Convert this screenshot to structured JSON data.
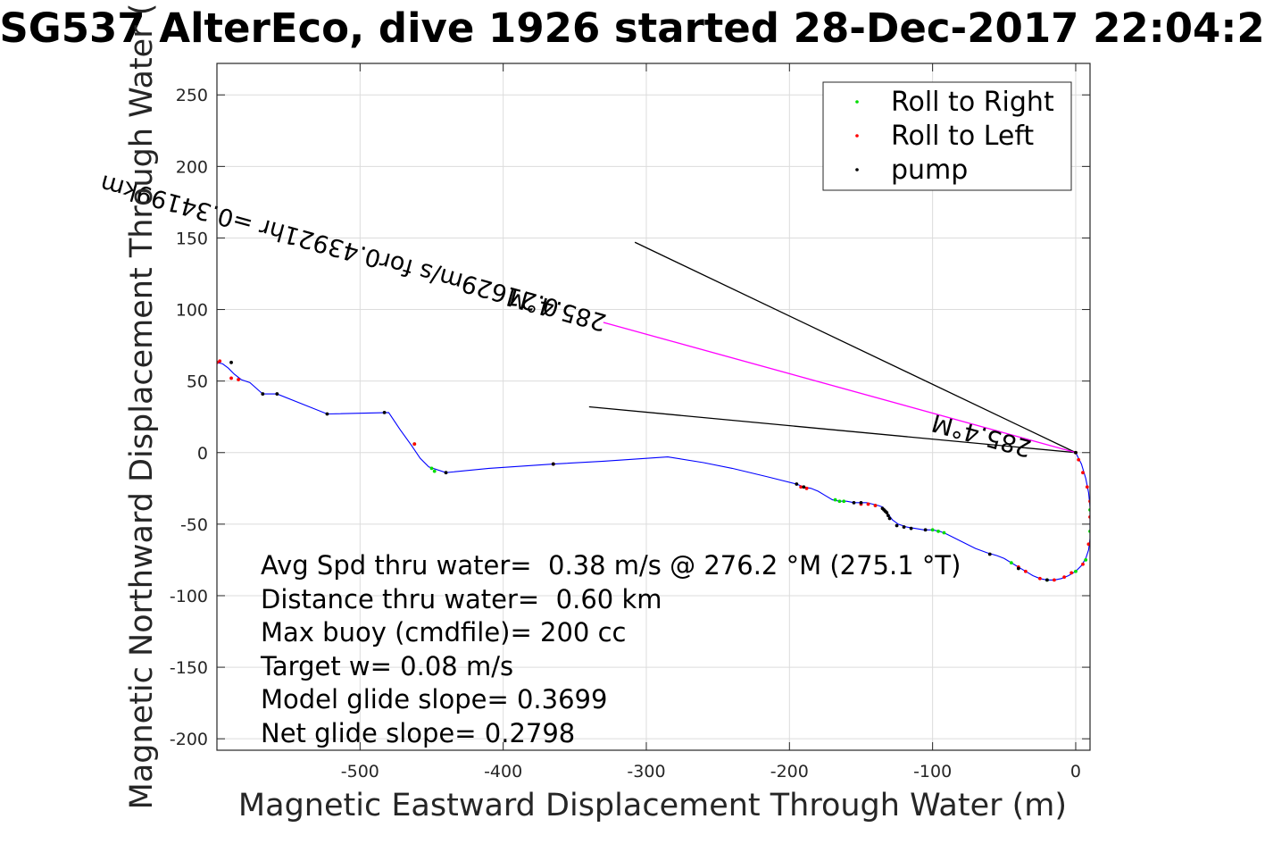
{
  "chart_data": {
    "type": "line",
    "title": "SG537 AlterEco, dive 1926 started 28-Dec-2017 22:04:2",
    "xlabel": "Magnetic Eastward Displacement Through Water (m)",
    "ylabel": "Magnetic Northward Displacement Through Water (",
    "xlim": [
      -600,
      10
    ],
    "ylim": [
      -208,
      272
    ],
    "xticks": [
      -500,
      -400,
      -300,
      -200,
      -100,
      0
    ],
    "xtick_labels": [
      "-500",
      "-400",
      "-300",
      "-200",
      "-100",
      "0"
    ],
    "yticks": [
      250,
      200,
      150,
      100,
      50,
      0,
      -50,
      -100,
      -150,
      -200
    ],
    "ytick_labels": [
      "250",
      "200",
      "150",
      "100",
      "50",
      "0",
      "-50",
      "-100",
      "-150",
      "-200"
    ],
    "grid": true,
    "legend_position": "top-right",
    "legend": [
      {
        "label": "Roll to Right",
        "color": "#00dd00"
      },
      {
        "label": "Roll to Left",
        "color": "#ff0000"
      },
      {
        "label": "pump",
        "color": "#000000"
      }
    ],
    "track": {
      "color": "#0000ff",
      "x": [
        0,
        4,
        7,
        9,
        10,
        10,
        10,
        9,
        7,
        4,
        0,
        -5,
        -10,
        -15,
        -20,
        -25,
        -30,
        -35,
        -40,
        -45,
        -50,
        -55,
        -62,
        -70,
        -80,
        -90,
        -95,
        -100,
        -106,
        -112,
        -118,
        -124,
        -128,
        -131,
        -133,
        -135,
        -138,
        -142,
        -146,
        -150,
        -155,
        -160,
        -165,
        -170,
        -175,
        -180,
        -185,
        -190,
        -195,
        -215,
        -240,
        -260,
        -285,
        -330,
        -365,
        -410,
        -440,
        -452,
        -458,
        -464,
        -472,
        -480,
        -523,
        -558,
        -568,
        -577,
        -583,
        -588,
        -592,
        -596,
        -600
      ],
      "y": [
        0,
        -8,
        -18,
        -28,
        -38,
        -50,
        -60,
        -68,
        -74,
        -79,
        -83,
        -86,
        -88,
        -89,
        -89,
        -88,
        -86,
        -83,
        -80,
        -77,
        -74,
        -72,
        -70,
        -67,
        -62,
        -57,
        -55,
        -54,
        -54,
        -53,
        -52,
        -50,
        -47,
        -43,
        -40,
        -38,
        -37,
        -36,
        -35,
        -35,
        -35,
        -34,
        -34,
        -33,
        -30,
        -27,
        -25,
        -24,
        -22,
        -17,
        -11,
        -7,
        -3,
        -6,
        -8,
        -11,
        -14,
        -10,
        -4,
        5,
        16,
        28,
        27,
        41,
        41,
        49,
        51,
        55,
        59,
        62,
        63
      ]
    },
    "roll_right": {
      "x": [
        10,
        10,
        7,
        0,
        -20,
        -45,
        -92,
        -96,
        -100,
        -140,
        -162,
        -165,
        -168,
        -450,
        -448,
        -462
      ],
      "y": [
        -40,
        -55,
        -75,
        -83,
        -89,
        -77,
        -56,
        -55,
        -54,
        -37,
        -34,
        -34,
        -33,
        -11,
        -13,
        6
      ]
    },
    "roll_left": {
      "x": [
        0,
        2,
        5,
        8,
        10,
        10,
        9,
        5,
        -3,
        -8,
        -15,
        -25,
        -35,
        -40,
        -140,
        -145,
        -150,
        -188,
        -192,
        -462,
        -365,
        -585,
        -590,
        -598,
        -600
      ],
      "y": [
        0,
        -5,
        -14,
        -24,
        -34,
        -45,
        -64,
        -78,
        -84,
        -87,
        -89,
        -88,
        -83,
        -80,
        -37,
        -36,
        -36,
        -25,
        -24,
        6,
        -8,
        51,
        52,
        64,
        63
      ],
      "color": "#ff0000"
    },
    "pump": {
      "x": [
        0,
        -20,
        -40,
        -60,
        -105,
        -115,
        -120,
        -125,
        -130,
        -131,
        -132,
        -133,
        -134,
        -135,
        -150,
        -155,
        -190,
        -195,
        -365,
        -440,
        -483,
        -523,
        -558,
        -568,
        -590
      ],
      "y": [
        0,
        -89,
        -81,
        -71,
        -54,
        -53,
        -52,
        -51,
        -46,
        -44,
        -42,
        -41,
        -40,
        -39,
        -35,
        -35,
        -24,
        -22,
        -8,
        -14,
        28,
        27,
        41,
        41,
        63
      ]
    },
    "heading_lines": [
      {
        "x": [
          0,
          -308
        ],
        "y": [
          0,
          147
        ],
        "color": "#000000"
      },
      {
        "x": [
          0,
          -340
        ],
        "y": [
          0,
          32
        ],
        "color": "#000000"
      },
      {
        "x": [
          0,
          -330
        ],
        "y": [
          0,
          91
        ],
        "color": "#ff00ff"
      }
    ],
    "annotations": [
      {
        "text": "0.21629m/s for0.43921hr =0.34199km",
        "x": -360,
        "y": 106,
        "angle_deg": 195.4
      },
      {
        "text": "285.4°M",
        "x": -327,
        "y": 96,
        "angle_deg": 195.4
      },
      {
        "text": "285.4°M",
        "x": -30,
        "y": 8,
        "angle_deg": 195.4
      }
    ],
    "stats_box": [
      "Avg Spd thru water=  0.38 m/s @ 276.2 °M (275.1 °T)",
      "Distance thru water=  0.60 km",
      "Max buoy (cmdfile)= 200 cc",
      "Target w= 0.08 m/s",
      "Model glide slope= 0.3699",
      "Net glide slope= 0.2798"
    ]
  }
}
